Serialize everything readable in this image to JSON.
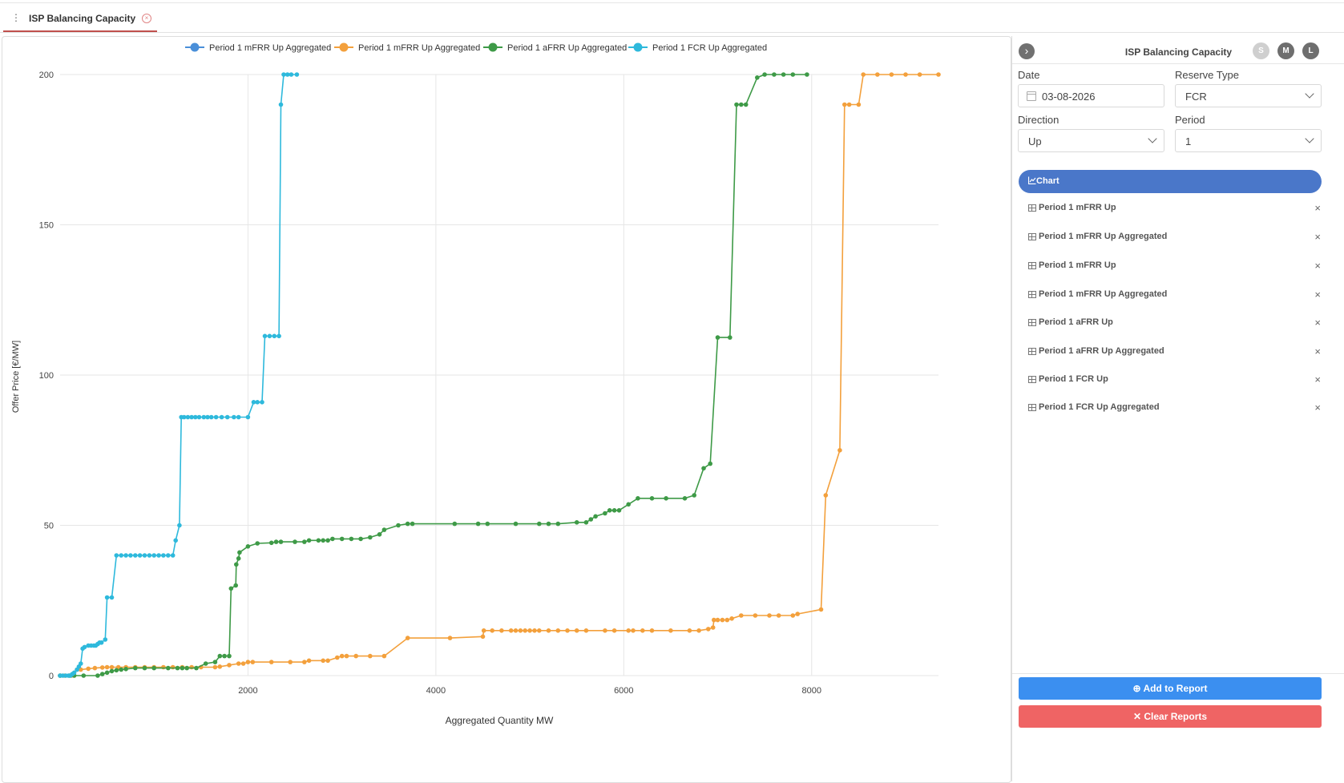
{
  "tab": {
    "title": "ISP Balancing Capacity"
  },
  "sidebar": {
    "title": "ISP Balancing Capacity",
    "size_buttons": [
      "S",
      "M",
      "L"
    ],
    "date_label": "Date",
    "date_value": "03-08-2026",
    "reserve_type_label": "Reserve Type",
    "reserve_type_value": "FCR",
    "direction_label": "Direction",
    "direction_value": "Up",
    "period_label": "Period",
    "period_value": "1",
    "chart_tab_label": "Chart",
    "reports": [
      "Period 1 mFRR Up",
      "Period 1 mFRR Up Aggregated",
      "Period 1 mFRR Up",
      "Period 1 mFRR Up Aggregated",
      "Period 1 aFRR Up",
      "Period 1 aFRR Up Aggregated",
      "Period 1 FCR Up",
      "Period 1 FCR Up Aggregated"
    ],
    "add_button": "Add to Report",
    "clear_button": "Clear Reports"
  },
  "colors": {
    "mfrr_blue": "#4a8fd9",
    "mfrr_orange": "#f3a03c",
    "afrr": "#3e9a47",
    "fcr": "#2eb9dc",
    "accent": "#4a77c9",
    "add": "#3b8ff0",
    "clear": "#ef6464"
  },
  "chart_data": {
    "type": "line",
    "xlabel": "Aggregated Quantity MW",
    "ylabel": "Offer Price [€/MW]",
    "xlim": [
      0,
      9350
    ],
    "ylim": [
      0,
      200
    ],
    "x_ticks": [
      2000,
      4000,
      6000,
      8000
    ],
    "y_ticks": [
      0,
      50,
      100,
      150,
      200
    ],
    "grid": true,
    "legend": "top-center",
    "series": [
      {
        "name": "Period 1 mFRR Up Aggregated",
        "color": "#4a8fd9",
        "points": []
      },
      {
        "name": "Period 1 mFRR Up Aggregated",
        "color": "#f3a03c",
        "points": [
          [
            0,
            0
          ],
          [
            50,
            0
          ],
          [
            120,
            0
          ],
          [
            180,
            2
          ],
          [
            220,
            2
          ],
          [
            300,
            2.3
          ],
          [
            370,
            2.5
          ],
          [
            450,
            2.7
          ],
          [
            500,
            2.8
          ],
          [
            550,
            2.8
          ],
          [
            620,
            2.8
          ],
          [
            700,
            2.8
          ],
          [
            800,
            2.8
          ],
          [
            900,
            2.8
          ],
          [
            1000,
            2.8
          ],
          [
            1100,
            2.8
          ],
          [
            1200,
            2.8
          ],
          [
            1300,
            2.8
          ],
          [
            1400,
            2.8
          ],
          [
            1500,
            2.8
          ],
          [
            1650,
            2.8
          ],
          [
            1700,
            3
          ],
          [
            1800,
            3.5
          ],
          [
            1900,
            4
          ],
          [
            1950,
            4
          ],
          [
            2000,
            4.5
          ],
          [
            2050,
            4.5
          ],
          [
            2250,
            4.5
          ],
          [
            2450,
            4.5
          ],
          [
            2600,
            4.5
          ],
          [
            2650,
            5
          ],
          [
            2800,
            5
          ],
          [
            2850,
            5
          ],
          [
            2950,
            6
          ],
          [
            3000,
            6.5
          ],
          [
            3050,
            6.5
          ],
          [
            3150,
            6.5
          ],
          [
            3300,
            6.5
          ],
          [
            3450,
            6.5
          ],
          [
            3700,
            12.5
          ],
          [
            4150,
            12.5
          ],
          [
            4500,
            13
          ],
          [
            4510,
            15
          ],
          [
            4600,
            15
          ],
          [
            4700,
            15
          ],
          [
            4800,
            15
          ],
          [
            4850,
            15
          ],
          [
            4900,
            15
          ],
          [
            4950,
            15
          ],
          [
            5000,
            15
          ],
          [
            5050,
            15
          ],
          [
            5100,
            15
          ],
          [
            5200,
            15
          ],
          [
            5300,
            15
          ],
          [
            5400,
            15
          ],
          [
            5500,
            15
          ],
          [
            5600,
            15
          ],
          [
            5800,
            15
          ],
          [
            5900,
            15
          ],
          [
            6050,
            15
          ],
          [
            6100,
            15
          ],
          [
            6200,
            15
          ],
          [
            6300,
            15
          ],
          [
            6500,
            15
          ],
          [
            6700,
            15
          ],
          [
            6800,
            15
          ],
          [
            6900,
            15.5
          ],
          [
            6950,
            16
          ],
          [
            6960,
            18.5
          ],
          [
            7000,
            18.5
          ],
          [
            7050,
            18.5
          ],
          [
            7100,
            18.5
          ],
          [
            7150,
            19
          ],
          [
            7250,
            20
          ],
          [
            7400,
            20
          ],
          [
            7550,
            20
          ],
          [
            7650,
            20
          ],
          [
            7800,
            20
          ],
          [
            7850,
            20.5
          ],
          [
            8100,
            22
          ],
          [
            8150,
            60
          ],
          [
            8300,
            75
          ],
          [
            8350,
            190
          ],
          [
            8400,
            190
          ],
          [
            8500,
            190
          ],
          [
            8550,
            200
          ],
          [
            8700,
            200
          ],
          [
            8850,
            200
          ],
          [
            9000,
            200
          ],
          [
            9150,
            200
          ],
          [
            9350,
            200
          ]
        ]
      },
      {
        "name": "Period 1 aFRR Up Aggregated",
        "color": "#3e9a47",
        "points": [
          [
            0,
            0
          ],
          [
            100,
            0
          ],
          [
            150,
            0
          ],
          [
            250,
            0
          ],
          [
            400,
            0
          ],
          [
            450,
            0.5
          ],
          [
            500,
            1
          ],
          [
            550,
            1.5
          ],
          [
            600,
            1.8
          ],
          [
            650,
            2
          ],
          [
            700,
            2.2
          ],
          [
            800,
            2.5
          ],
          [
            900,
            2.5
          ],
          [
            1000,
            2.5
          ],
          [
            1150,
            2.5
          ],
          [
            1250,
            2.5
          ],
          [
            1300,
            2.5
          ],
          [
            1350,
            2.5
          ],
          [
            1450,
            2.5
          ],
          [
            1550,
            4
          ],
          [
            1650,
            4.5
          ],
          [
            1700,
            6.5
          ],
          [
            1750,
            6.5
          ],
          [
            1800,
            6.5
          ],
          [
            1820,
            29
          ],
          [
            1870,
            30
          ],
          [
            1875,
            37
          ],
          [
            1900,
            39
          ],
          [
            1910,
            41
          ],
          [
            2000,
            43
          ],
          [
            2100,
            44
          ],
          [
            2250,
            44.2
          ],
          [
            2300,
            44.5
          ],
          [
            2350,
            44.5
          ],
          [
            2500,
            44.5
          ],
          [
            2600,
            44.5
          ],
          [
            2650,
            45
          ],
          [
            2750,
            45
          ],
          [
            2800,
            45
          ],
          [
            2850,
            45
          ],
          [
            2900,
            45.5
          ],
          [
            3000,
            45.5
          ],
          [
            3100,
            45.5
          ],
          [
            3200,
            45.5
          ],
          [
            3300,
            46
          ],
          [
            3400,
            47
          ],
          [
            3450,
            48.5
          ],
          [
            3600,
            50
          ],
          [
            3700,
            50.5
          ],
          [
            3750,
            50.5
          ],
          [
            4200,
            50.5
          ],
          [
            4450,
            50.5
          ],
          [
            4550,
            50.5
          ],
          [
            4850,
            50.5
          ],
          [
            5100,
            50.5
          ],
          [
            5200,
            50.5
          ],
          [
            5300,
            50.5
          ],
          [
            5500,
            51
          ],
          [
            5600,
            51
          ],
          [
            5650,
            52
          ],
          [
            5700,
            53
          ],
          [
            5800,
            54
          ],
          [
            5850,
            55
          ],
          [
            5900,
            55
          ],
          [
            5950,
            55
          ],
          [
            6050,
            57
          ],
          [
            6150,
            59
          ],
          [
            6300,
            59
          ],
          [
            6450,
            59
          ],
          [
            6650,
            59
          ],
          [
            6750,
            60
          ],
          [
            6850,
            69
          ],
          [
            6920,
            70.5
          ],
          [
            7000,
            112.5
          ],
          [
            7130,
            112.5
          ],
          [
            7200,
            190
          ],
          [
            7250,
            190
          ],
          [
            7300,
            190
          ],
          [
            7420,
            199
          ],
          [
            7500,
            200
          ],
          [
            7600,
            200
          ],
          [
            7700,
            200
          ],
          [
            7800,
            200
          ],
          [
            7950,
            200
          ]
        ]
      },
      {
        "name": "Period 1 FCR Up Aggregated",
        "color": "#2eb9dc",
        "points": [
          [
            0,
            0
          ],
          [
            30,
            0
          ],
          [
            60,
            0
          ],
          [
            90,
            0
          ],
          [
            110,
            0
          ],
          [
            130,
            0.5
          ],
          [
            150,
            1
          ],
          [
            180,
            2
          ],
          [
            200,
            3
          ],
          [
            220,
            4
          ],
          [
            240,
            9
          ],
          [
            260,
            9.5
          ],
          [
            300,
            10
          ],
          [
            330,
            10
          ],
          [
            360,
            10
          ],
          [
            380,
            10
          ],
          [
            400,
            10.5
          ],
          [
            420,
            11
          ],
          [
            440,
            11
          ],
          [
            480,
            12
          ],
          [
            500,
            26
          ],
          [
            550,
            26
          ],
          [
            600,
            40
          ],
          [
            650,
            40
          ],
          [
            700,
            40
          ],
          [
            750,
            40
          ],
          [
            800,
            40
          ],
          [
            850,
            40
          ],
          [
            900,
            40
          ],
          [
            950,
            40
          ],
          [
            1000,
            40
          ],
          [
            1050,
            40
          ],
          [
            1100,
            40
          ],
          [
            1150,
            40
          ],
          [
            1200,
            40
          ],
          [
            1230,
            45
          ],
          [
            1270,
            50
          ],
          [
            1290,
            86
          ],
          [
            1320,
            86
          ],
          [
            1360,
            86
          ],
          [
            1400,
            86
          ],
          [
            1440,
            86
          ],
          [
            1480,
            86
          ],
          [
            1530,
            86
          ],
          [
            1570,
            86
          ],
          [
            1610,
            86
          ],
          [
            1660,
            86
          ],
          [
            1720,
            86
          ],
          [
            1780,
            86
          ],
          [
            1850,
            86
          ],
          [
            1900,
            86
          ],
          [
            2000,
            86
          ],
          [
            2060,
            91
          ],
          [
            2100,
            91
          ],
          [
            2150,
            91
          ],
          [
            2180,
            113
          ],
          [
            2230,
            113
          ],
          [
            2280,
            113
          ],
          [
            2330,
            113
          ],
          [
            2350,
            190
          ],
          [
            2380,
            200
          ],
          [
            2420,
            200
          ],
          [
            2460,
            200
          ],
          [
            2520,
            200
          ]
        ]
      }
    ]
  }
}
